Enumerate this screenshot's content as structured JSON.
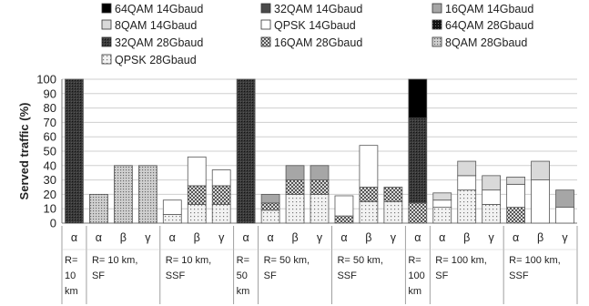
{
  "chart_data": {
    "type": "bar",
    "stacked": true,
    "title": "",
    "ylabel": "Served traffic (%)",
    "xlabel": "",
    "ylim": [
      0,
      100
    ],
    "yticks": [
      0,
      10,
      20,
      30,
      40,
      50,
      60,
      70,
      80,
      90,
      100
    ],
    "grid": true,
    "legend_position": "top",
    "series": [
      {
        "name": "64QAM 14Gbaud",
        "pattern": "black"
      },
      {
        "name": "32QAM 14Gbaud",
        "pattern": "darkgray"
      },
      {
        "name": "16QAM 14Gbaud",
        "pattern": "midgray"
      },
      {
        "name": "8QAM 14Gbaud",
        "pattern": "lightgray"
      },
      {
        "name": "QPSK 14Gbaud",
        "pattern": "white"
      },
      {
        "name": "64QAM 28Gbaud",
        "pattern": "blackdots"
      },
      {
        "name": "32QAM 28Gbaud",
        "pattern": "darkdots"
      },
      {
        "name": "16QAM 28Gbaud",
        "pattern": "checker"
      },
      {
        "name": "8QAM 28Gbaud",
        "pattern": "denseDots"
      },
      {
        "name": "QPSK 28Gbaud",
        "pattern": "sparseDots"
      }
    ],
    "groups": [
      {
        "label": [
          "R=",
          "10",
          "km"
        ],
        "bars": [
          "α"
        ]
      },
      {
        "label": [
          "R= 10 km,",
          "SF"
        ],
        "bars": [
          "α",
          "β",
          "γ"
        ]
      },
      {
        "label": [
          "R= 10 km,",
          "SSF"
        ],
        "bars": [
          "α",
          "β",
          "γ"
        ]
      },
      {
        "label": [
          "R=",
          "50",
          "km"
        ],
        "bars": [
          "α"
        ]
      },
      {
        "label": [
          "R= 50 km,",
          "SF"
        ],
        "bars": [
          "α",
          "β",
          "γ"
        ]
      },
      {
        "label": [
          "R= 50 km,",
          "SSF"
        ],
        "bars": [
          "α",
          "β",
          "γ"
        ]
      },
      {
        "label": [
          "R=",
          "100",
          "km"
        ],
        "bars": [
          "α"
        ]
      },
      {
        "label": [
          "R= 100 km,",
          "SF"
        ],
        "bars": [
          "α",
          "β",
          "γ"
        ]
      },
      {
        "label": [
          "R= 100 km,",
          "SSF"
        ],
        "bars": [
          "α",
          "β",
          "γ"
        ]
      }
    ],
    "bars": [
      {
        "group": 0,
        "label": "α",
        "segments": [
          {
            "series": "32QAM 28Gbaud",
            "value": 100
          }
        ]
      },
      {
        "group": 1,
        "label": "α",
        "segments": [
          {
            "series": "8QAM 28Gbaud",
            "value": 20
          }
        ]
      },
      {
        "group": 1,
        "label": "β",
        "segments": [
          {
            "series": "8QAM 28Gbaud",
            "value": 40
          }
        ]
      },
      {
        "group": 1,
        "label": "γ",
        "segments": [
          {
            "series": "8QAM 28Gbaud",
            "value": 40
          }
        ]
      },
      {
        "group": 2,
        "label": "α",
        "segments": [
          {
            "series": "QPSK 28Gbaud",
            "value": 6
          },
          {
            "series": "QPSK 14Gbaud",
            "value": 10
          }
        ]
      },
      {
        "group": 2,
        "label": "β",
        "segments": [
          {
            "series": "QPSK 28Gbaud",
            "value": 13
          },
          {
            "series": "16QAM 28Gbaud",
            "value": 13
          },
          {
            "series": "QPSK 14Gbaud",
            "value": 20
          }
        ]
      },
      {
        "group": 2,
        "label": "γ",
        "segments": [
          {
            "series": "QPSK 28Gbaud",
            "value": 13
          },
          {
            "series": "16QAM 28Gbaud",
            "value": 13
          },
          {
            "series": "QPSK 14Gbaud",
            "value": 11
          }
        ]
      },
      {
        "group": 3,
        "label": "α",
        "segments": [
          {
            "series": "32QAM 28Gbaud",
            "value": 100
          }
        ]
      },
      {
        "group": 4,
        "label": "α",
        "segments": [
          {
            "series": "QPSK 28Gbaud",
            "value": 9
          },
          {
            "series": "16QAM 28Gbaud",
            "value": 5
          },
          {
            "series": "16QAM 14Gbaud",
            "value": 6
          }
        ]
      },
      {
        "group": 4,
        "label": "β",
        "segments": [
          {
            "series": "QPSK 28Gbaud",
            "value": 20
          },
          {
            "series": "16QAM 28Gbaud",
            "value": 10
          },
          {
            "series": "16QAM 14Gbaud",
            "value": 10
          }
        ]
      },
      {
        "group": 4,
        "label": "γ",
        "segments": [
          {
            "series": "QPSK 28Gbaud",
            "value": 20
          },
          {
            "series": "16QAM 28Gbaud",
            "value": 10
          },
          {
            "series": "16QAM 14Gbaud",
            "value": 10
          }
        ]
      },
      {
        "group": 5,
        "label": "α",
        "segments": [
          {
            "series": "16QAM 28Gbaud",
            "value": 5
          },
          {
            "series": "QPSK 14Gbaud",
            "value": 14
          }
        ]
      },
      {
        "group": 5,
        "label": "β",
        "segments": [
          {
            "series": "QPSK 28Gbaud",
            "value": 15
          },
          {
            "series": "16QAM 28Gbaud",
            "value": 10
          },
          {
            "series": "QPSK 14Gbaud",
            "value": 29
          }
        ]
      },
      {
        "group": 5,
        "label": "γ",
        "segments": [
          {
            "series": "QPSK 28Gbaud",
            "value": 15
          },
          {
            "series": "16QAM 28Gbaud",
            "value": 10
          }
        ]
      },
      {
        "group": 6,
        "label": "α",
        "segments": [
          {
            "series": "16QAM 28Gbaud",
            "value": 14
          },
          {
            "series": "32QAM 28Gbaud",
            "value": 59
          },
          {
            "series": "64QAM 14Gbaud",
            "value": 27
          }
        ]
      },
      {
        "group": 7,
        "label": "α",
        "segments": [
          {
            "series": "QPSK 28Gbaud",
            "value": 11
          },
          {
            "series": "QPSK 14Gbaud",
            "value": 5
          },
          {
            "series": "8QAM 14Gbaud",
            "value": 5
          }
        ]
      },
      {
        "group": 7,
        "label": "β",
        "segments": [
          {
            "series": "QPSK 28Gbaud",
            "value": 23
          },
          {
            "series": "QPSK 14Gbaud",
            "value": 10
          },
          {
            "series": "8QAM 14Gbaud",
            "value": 10
          }
        ]
      },
      {
        "group": 7,
        "label": "γ",
        "segments": [
          {
            "series": "QPSK 28Gbaud",
            "value": 13
          },
          {
            "series": "QPSK 14Gbaud",
            "value": 10
          },
          {
            "series": "8QAM 14Gbaud",
            "value": 10
          }
        ]
      },
      {
        "group": 8,
        "label": "α",
        "segments": [
          {
            "series": "16QAM 28Gbaud",
            "value": 11
          },
          {
            "series": "QPSK 14Gbaud",
            "value": 16
          },
          {
            "series": "8QAM 14Gbaud",
            "value": 5
          }
        ]
      },
      {
        "group": 8,
        "label": "β",
        "segments": [
          {
            "series": "QPSK 14Gbaud",
            "value": 30
          },
          {
            "series": "8QAM 14Gbaud",
            "value": 13
          }
        ]
      },
      {
        "group": 8,
        "label": "γ",
        "segments": [
          {
            "series": "QPSK 14Gbaud",
            "value": 11
          },
          {
            "series": "16QAM 14Gbaud",
            "value": 12
          }
        ]
      }
    ]
  }
}
